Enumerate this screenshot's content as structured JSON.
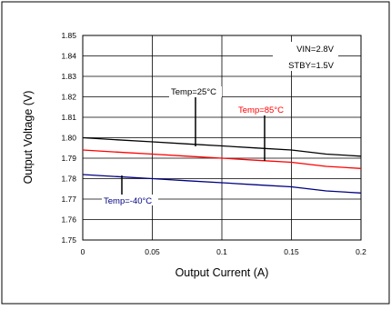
{
  "chart_data": {
    "type": "line",
    "title": "",
    "xlabel": "Output Current (A)",
    "ylabel": "Output Voltage (V)",
    "xlim": [
      0,
      0.2
    ],
    "ylim": [
      1.75,
      1.85
    ],
    "x_ticks": [
      "0",
      "0.05",
      "0.1",
      "0.15",
      "0.2"
    ],
    "y_ticks": [
      "1.75",
      "1.76",
      "1.77",
      "1.78",
      "1.79",
      "1.80",
      "1.81",
      "1.82",
      "1.83",
      "1.84",
      "1.85"
    ],
    "grid": true,
    "x": [
      0,
      0.025,
      0.05,
      0.075,
      0.1,
      0.125,
      0.15,
      0.175,
      0.2
    ],
    "series": [
      {
        "name": "Temp=25°C",
        "color": "#000000",
        "values": [
          1.8,
          1.799,
          1.798,
          1.797,
          1.796,
          1.795,
          1.794,
          1.792,
          1.791
        ]
      },
      {
        "name": "Temp=85°C",
        "color": "#ff0000",
        "values": [
          1.794,
          1.793,
          1.792,
          1.791,
          1.79,
          1.789,
          1.788,
          1.786,
          1.785
        ]
      },
      {
        "name": "Temp=-40°C",
        "color": "#000080",
        "values": [
          1.782,
          1.781,
          1.78,
          1.779,
          1.778,
          1.777,
          1.776,
          1.774,
          1.773
        ]
      }
    ],
    "conditions": [
      "VIN=2.8V",
      "STBY=1.5V"
    ]
  }
}
